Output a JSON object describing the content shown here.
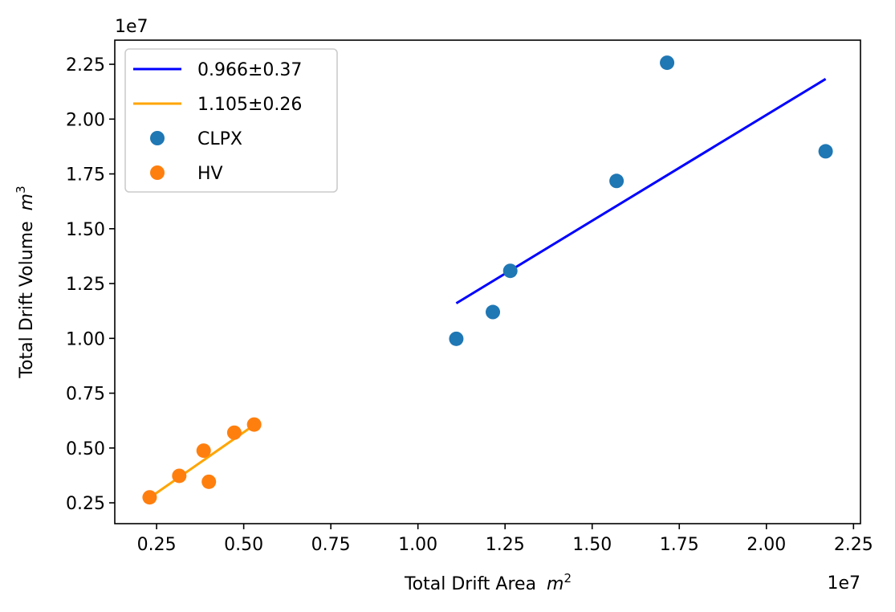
{
  "chart_data": {
    "type": "scatter",
    "title": "",
    "xlabel": "Total Drift Area",
    "xlabel_unit_base": "m",
    "xlabel_unit_exp": "2",
    "ylabel": "Total Drift Volume",
    "ylabel_unit_base": "m",
    "ylabel_unit_exp": "3",
    "x_offset_text": "1e7",
    "y_offset_text": "1e7",
    "xlim": [
      0.13,
      2.27
    ],
    "ylim": [
      0.155,
      2.36
    ],
    "xticks": [
      0.25,
      0.5,
      0.75,
      1.0,
      1.25,
      1.5,
      1.75,
      2.0,
      2.25
    ],
    "xtick_labels": [
      "0.25",
      "0.50",
      "0.75",
      "1.00",
      "1.25",
      "1.50",
      "1.75",
      "2.00",
      "2.25"
    ],
    "yticks": [
      0.25,
      0.5,
      0.75,
      1.0,
      1.25,
      1.5,
      1.75,
      2.0,
      2.25
    ],
    "ytick_labels": [
      "0.25",
      "0.50",
      "0.75",
      "1.00",
      "1.25",
      "1.50",
      "1.75",
      "2.00",
      "2.25"
    ],
    "grid": false,
    "legend_position": "top-left",
    "series": [
      {
        "name": "CLPX",
        "kind": "scatter",
        "color": "#1f77b4",
        "x": [
          1.11,
          1.215,
          1.265,
          1.57,
          1.715,
          2.17
        ],
        "y": [
          0.998,
          1.12,
          1.308,
          1.718,
          2.257,
          1.853
        ]
      },
      {
        "name": "HV",
        "kind": "scatter",
        "color": "#ff7f0e",
        "x": [
          0.23,
          0.315,
          0.385,
          0.4,
          0.473,
          0.53
        ],
        "y": [
          0.275,
          0.373,
          0.488,
          0.346,
          0.57,
          0.607
        ]
      },
      {
        "name": "0.966±0.37",
        "kind": "line",
        "color": "#0000ff",
        "x": [
          1.11,
          2.17
        ],
        "y": [
          1.16,
          2.183
        ]
      },
      {
        "name": "1.105±0.26",
        "kind": "line",
        "color": "#ffa500",
        "x": [
          0.23,
          0.53
        ],
        "y": [
          0.273,
          0.605
        ]
      }
    ],
    "legend_entries": [
      {
        "label": "0.966±0.37",
        "marker": "line",
        "color": "#0000ff"
      },
      {
        "label": "1.105±0.26",
        "marker": "line",
        "color": "#ffa500"
      },
      {
        "label": "CLPX",
        "marker": "dot",
        "color": "#1f77b4"
      },
      {
        "label": "HV",
        "marker": "dot",
        "color": "#ff7f0e"
      }
    ]
  }
}
